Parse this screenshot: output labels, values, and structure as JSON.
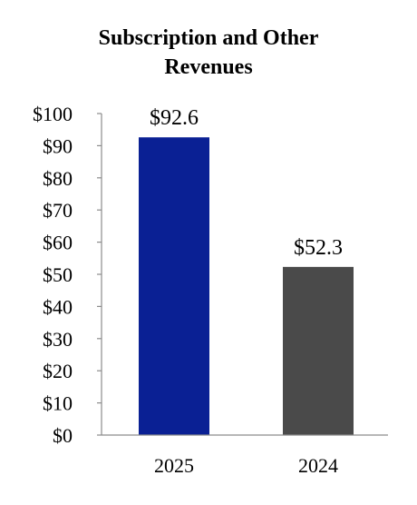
{
  "chart_data": {
    "type": "bar",
    "title_lines": [
      "Subscription and Other",
      "Revenues"
    ],
    "categories": [
      "2025",
      "2024"
    ],
    "values": [
      92.6,
      52.3
    ],
    "data_labels": [
      "$92.6",
      "$52.3"
    ],
    "bar_colors": [
      "#0a2094",
      "#4a4a4a"
    ],
    "ylim": [
      0,
      100
    ],
    "y_ticks": [
      0,
      10,
      20,
      30,
      40,
      50,
      60,
      70,
      80,
      90,
      100
    ],
    "y_tick_labels": [
      "$0",
      "$10",
      "$20",
      "$30",
      "$40",
      "$50",
      "$60",
      "$70",
      "$80",
      "$90",
      "$100"
    ],
    "grid": false,
    "legend": "none"
  }
}
